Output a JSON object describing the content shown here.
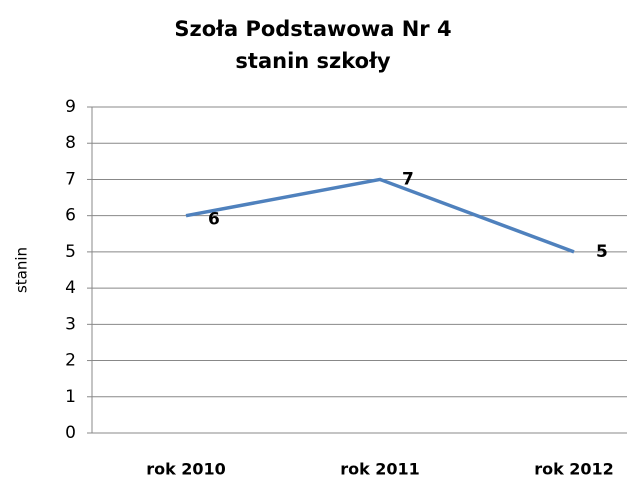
{
  "chart_data": {
    "type": "line",
    "title": [
      "Szoła Podstawowa Nr 4",
      "stanin szkoły"
    ],
    "y_label": "stanin",
    "categories": [
      "rok 2010",
      "rok 2011",
      "rok 2012"
    ],
    "series": [
      {
        "name": "stanin",
        "color": "#4f81bd",
        "values": [
          6,
          7,
          5
        ]
      }
    ],
    "ylim": [
      0,
      9
    ],
    "yticks": [
      0,
      1,
      2,
      3,
      4,
      5,
      6,
      7,
      8,
      9
    ],
    "grid": true,
    "data_labels": true
  }
}
